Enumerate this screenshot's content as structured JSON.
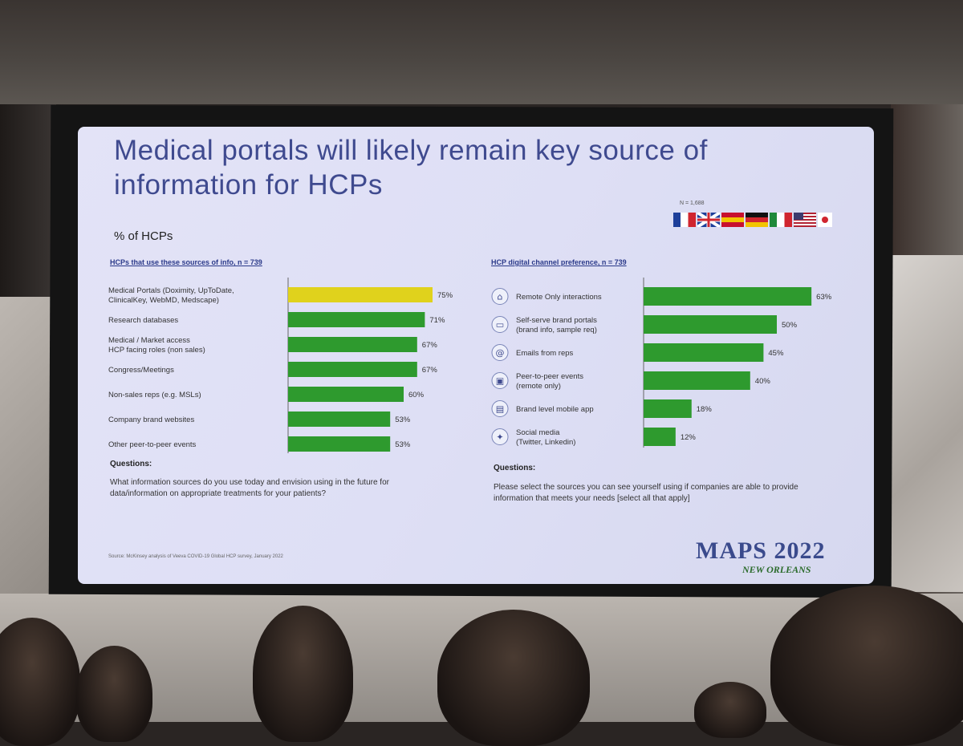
{
  "slide": {
    "title": "Medical portals will likely remain key source of information for HCPs",
    "subtitle": "% of HCPs",
    "n_label": "N = 1,688",
    "source": "Source: McKinsey analysis of Veeva COVID-19 Global HCP survey, January 2022",
    "logo_main": "MAPS 2022",
    "logo_sub": "NEW ORLEANS",
    "flags": [
      {
        "name": "france-flag",
        "colors": [
          "#1d3f9a",
          "#ffffff",
          "#d0252f"
        ]
      },
      {
        "name": "uk-flag",
        "colors": [
          "#1d3f9a",
          "#ffffff",
          "#d0252f"
        ]
      },
      {
        "name": "spain-flag",
        "colors": [
          "#c8102e",
          "#f2c400",
          "#c8102e"
        ]
      },
      {
        "name": "germany-flag",
        "colors": [
          "#111111",
          "#d0252f",
          "#f2c400"
        ]
      },
      {
        "name": "italy-flag",
        "colors": [
          "#1f8a3a",
          "#ffffff",
          "#d0252f"
        ]
      },
      {
        "name": "usa-flag",
        "colors": [
          "#b22234",
          "#ffffff",
          "#3c3b6e"
        ]
      },
      {
        "name": "japan-flag",
        "colors": [
          "#ffffff",
          "#d0252f"
        ]
      }
    ]
  },
  "left": {
    "header": "HCPs that use these sources of info, n = 739",
    "questions_head": "Questions:",
    "question": "What information sources do you use today and envision using in the future for data/information on appropriate treatments for your patients?"
  },
  "right": {
    "header": "HCP digital channel preference, n = 739",
    "questions_head": "Questions:",
    "question": "Please select the sources you can see yourself using if companies are able to provide information that meets your needs [select all that apply]"
  },
  "chart_data": [
    {
      "type": "bar",
      "orientation": "horizontal",
      "title": "HCPs that use these sources of info, n = 739",
      "categories": [
        "Medical Portals (Doximity, UpToDate, ClinicalKey, WebMD, Medscape)",
        "Research databases",
        "Medical / Market access HCP facing roles (non sales)",
        "Congress/Meetings",
        "Non-sales reps (e.g. MSLs)",
        "Company brand websites",
        "Other peer-to-peer events"
      ],
      "label_lines": [
        [
          "Medical Portals (Doximity, UpToDate,",
          "ClinicalKey, WebMD, Medscape)"
        ],
        [
          "Research databases"
        ],
        [
          "Medical / Market access",
          "HCP facing roles (non sales)"
        ],
        [
          "Congress/Meetings"
        ],
        [
          "Non-sales reps (e.g. MSLs)"
        ],
        [
          "Company brand websites"
        ],
        [
          "Other peer-to-peer events"
        ]
      ],
      "values": [
        75,
        71,
        67,
        67,
        60,
        53,
        53
      ],
      "value_labels": [
        "75%",
        "71%",
        "67%",
        "67%",
        "60%",
        "53%",
        "53%"
      ],
      "highlight_index": 0,
      "colors": {
        "bar": "#2e9a2e",
        "highlight": "#e0d21c"
      }
    },
    {
      "type": "bar",
      "orientation": "horizontal",
      "title": "HCP digital channel preference, n = 739",
      "categories": [
        "Remote Only interactions",
        "Self-serve brand portals (brand info, sample req)",
        "Emails from reps",
        "Peer-to-peer events (remote only)",
        "Brand level mobile app",
        "Social media (Twitter, Linkedin)"
      ],
      "label_lines": [
        [
          "Remote Only interactions"
        ],
        [
          "Self-serve brand portals",
          "(brand info, sample req)"
        ],
        [
          "Emails from reps"
        ],
        [
          "Peer-to-peer events",
          "(remote only)"
        ],
        [
          "Brand level mobile app"
        ],
        [
          "Social media",
          "(Twitter, Linkedin)"
        ]
      ],
      "icons": [
        "house-icon",
        "laptop-icon",
        "at-sign-icon",
        "video-call-icon",
        "mobile-app-icon",
        "twitter-icon"
      ],
      "values": [
        63,
        50,
        45,
        40,
        18,
        12
      ],
      "value_labels": [
        "63%",
        "50%",
        "45%",
        "40%",
        "18%",
        "12%"
      ],
      "colors": {
        "bar": "#2e9a2e"
      }
    }
  ]
}
